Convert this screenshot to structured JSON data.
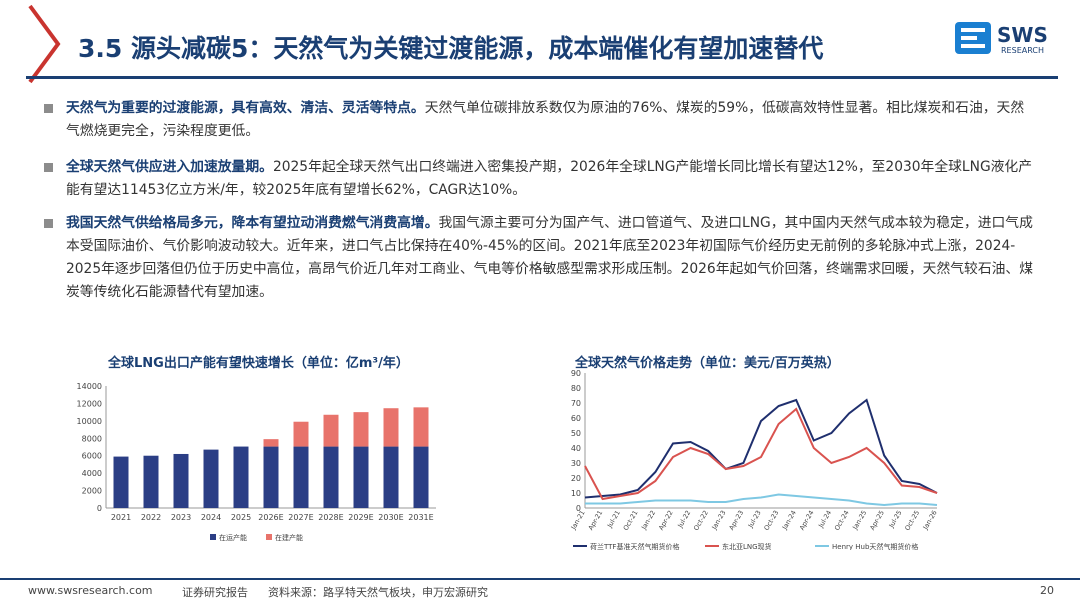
{
  "header": {
    "title": "3.5 源头减碳5：天然气为关键过渡能源，成本端催化有望加速替代",
    "logo_text": "SWS",
    "logo_subtext": "RESEARCH"
  },
  "bullets": [
    {
      "bold": "天然气为重要的过渡能源，具有高效、清洁、灵活等特点。",
      "text": "天然气单位碳排放系数仅为原油的76%、煤炭的59%，低碳高效特性显著。相比煤炭和石油，天然气燃烧更完全，污染程度更低。"
    },
    {
      "bold": "全球天然气供应进入加速放量期。",
      "text": "2025年起全球天然气出口终端进入密集投产期，2026年全球LNG产能增长同比增长有望达12%，至2030年全球LNG液化产能有望达11453亿立方米/年，较2025年底有望增长62%，CAGR达10%。"
    },
    {
      "bold": "我国天然气供给格局多元，降本有望拉动消费燃气消费高增。",
      "text": "我国气源主要可分为国产气、进口管道气、及进口LNG，其中国内天然气成本较为稳定，进口气成本受国际油价、气价影响波动较大。近年来，进口气占比保持在40%-45%的区间。2021年底至2023年初国际气价经历史无前例的多轮脉冲式上涨，2024-2025年逐步回落但仍位于历史中高位，高昂气价近几年对工商业、气电等价格敏感型需求形成压制。2026年起如气价回落，终端需求回暖，天然气较石油、煤炭等传统化石能源替代有望加速。"
    }
  ],
  "chart_data": [
    {
      "type": "bar",
      "title": "全球LNG出口产能有望快速增长（单位：亿m³/年）",
      "categories": [
        "2021",
        "2022",
        "2023",
        "2024",
        "2025",
        "2026E",
        "2027E",
        "2028E",
        "2029E",
        "2030E",
        "2031E"
      ],
      "ylim": [
        0,
        14000
      ],
      "yticks": [
        0,
        2000,
        4000,
        6000,
        8000,
        10000,
        12000,
        14000
      ],
      "stacked": true,
      "series": [
        {
          "name": "在运产能",
          "color": "#2b3e85",
          "values": [
            5900,
            6000,
            6200,
            6700,
            7050,
            7050,
            7050,
            7050,
            7050,
            7050,
            7050
          ]
        },
        {
          "name": "在建产能",
          "color": "#e8736b",
          "values": [
            0,
            0,
            0,
            0,
            0,
            850,
            2850,
            3650,
            3950,
            4400,
            4500
          ]
        }
      ],
      "legend_position": "bottom",
      "grid": false
    },
    {
      "type": "line",
      "title": "全球天然气价格走势（单位：美元/百万英热）",
      "ylim": [
        0,
        90
      ],
      "yticks": [
        0,
        10,
        20,
        30,
        40,
        50,
        60,
        70,
        80,
        90
      ],
      "x_labels": [
        "Jan-21",
        "Apr-21",
        "Jul-21",
        "Oct-21",
        "Jan-22",
        "Apr-22",
        "Jul-22",
        "Oct-22",
        "Jan-23",
        "Apr-23",
        "Jul-23",
        "Oct-23",
        "Jan-24",
        "Apr-24",
        "Jul-24",
        "Oct-24",
        "Jan-25",
        "Apr-25",
        "Jul-25",
        "Oct-25",
        "Jan-26"
      ],
      "x": [
        0,
        1,
        2,
        3,
        4,
        5,
        6,
        7,
        8,
        9,
        10,
        11,
        12,
        13,
        14,
        15,
        16,
        17,
        18,
        19,
        20
      ],
      "series": [
        {
          "name": "荷兰TTF基准天然气期货价格",
          "color": "#1f2f6e",
          "values": [
            7,
            8,
            9,
            12,
            24,
            43,
            44,
            38,
            26,
            30,
            58,
            68,
            72,
            45,
            50,
            63,
            72,
            35,
            18,
            16,
            10
          ]
        },
        {
          "name": "东北亚LNG现货",
          "color": "#d9534f",
          "values": [
            28,
            6,
            8,
            10,
            18,
            34,
            40,
            36,
            26,
            28,
            34,
            56,
            66,
            40,
            30,
            34,
            40,
            30,
            15,
            14,
            10
          ]
        },
        {
          "name": "Henry Hub天然气期货价格",
          "color": "#7ec8e3",
          "values": [
            3,
            3,
            3,
            4,
            5,
            5,
            5,
            4,
            4,
            6,
            7,
            9,
            8,
            7,
            6,
            5,
            3,
            2,
            3,
            3,
            2
          ]
        }
      ],
      "legend_position": "bottom",
      "grid": false
    }
  ],
  "footer": {
    "website": "www.swsresearch.com",
    "doc_type": "证券研究报告",
    "source": "资料来源：路孚特天然气板块，申万宏源研究",
    "page_number": "20"
  }
}
